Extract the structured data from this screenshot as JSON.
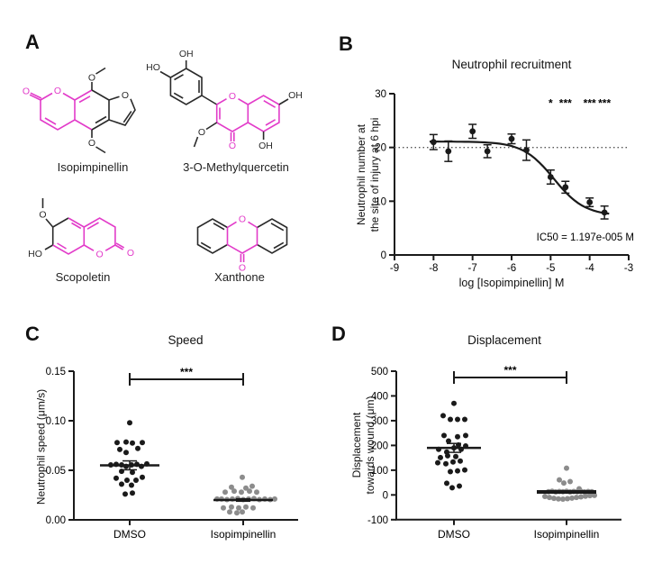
{
  "panel_labels": {
    "a": "A",
    "b": "B",
    "c": "C",
    "d": "D"
  },
  "colors": {
    "magenta": "#E23BC9",
    "ink": "#1A1A1A",
    "gray": "#8C8C8C"
  },
  "molecules": [
    {
      "name": "Isopimpinellin",
      "atoms": [
        "O",
        "O",
        "O",
        "O",
        "O"
      ]
    },
    {
      "name": "3-O-Methylquercetin",
      "atoms": [
        "OH",
        "HO",
        "O",
        "OH",
        "O",
        "O",
        "OH"
      ]
    },
    {
      "name": "Scopoletin",
      "atoms": [
        "O",
        "HO",
        "O",
        "O"
      ]
    },
    {
      "name": "Xanthone",
      "atoms": [
        "O",
        "O"
      ]
    }
  ],
  "chart_data": [
    {
      "id": "B",
      "type": "scatter",
      "title": "Neutrophil recruitment",
      "xlabel": "log [Isopimpinellin] M",
      "ylabel_lines": [
        "Neutrophil number at",
        "the site of injury at 6 hpi"
      ],
      "xlim": [
        -9,
        -3
      ],
      "ylim": [
        0,
        30
      ],
      "xticks": [
        -9,
        -8,
        -7,
        -6,
        -5,
        -4,
        -3
      ],
      "yticks": [
        0,
        10,
        20,
        30
      ],
      "reference_line_y": 20,
      "points": [
        {
          "x": -8.0,
          "y": 21.0,
          "err": 1.4
        },
        {
          "x": -7.62,
          "y": 19.3,
          "err": 1.9
        },
        {
          "x": -7.0,
          "y": 23.0,
          "err": 1.3
        },
        {
          "x": -6.62,
          "y": 19.3,
          "err": 1.2
        },
        {
          "x": -6.0,
          "y": 21.6,
          "err": 0.9
        },
        {
          "x": -5.62,
          "y": 19.5,
          "err": 1.9
        },
        {
          "x": -5.0,
          "y": 14.5,
          "err": 1.3
        },
        {
          "x": -4.62,
          "y": 12.6,
          "err": 1.1
        },
        {
          "x": -4.0,
          "y": 9.8,
          "err": 0.8
        },
        {
          "x": -3.62,
          "y": 7.9,
          "err": 1.2
        }
      ],
      "curve": {
        "top": 21.1,
        "bottom": 7.3,
        "logIC50": -4.92,
        "hill": 1.1
      },
      "significance": [
        {
          "x": -5.0,
          "t": "*"
        },
        {
          "x": -4.62,
          "t": "***"
        },
        {
          "x": -4.0,
          "t": "***"
        },
        {
          "x": -3.62,
          "t": "***"
        }
      ],
      "sig_y": 27.6,
      "annotation": "IC50 = 1.197e-005 M"
    },
    {
      "id": "C",
      "type": "column-scatter",
      "title": "Speed",
      "ylabel": "Neutrophil speed (μm/s)",
      "ylim": [
        0,
        0.15
      ],
      "yticks": [
        0,
        0.05,
        0.1,
        0.15
      ],
      "ytick_labels": [
        "0.00",
        "0.05",
        "0.10",
        "0.15"
      ],
      "significance": "***",
      "groups": [
        {
          "label": "DMSO",
          "color": "ink",
          "mean": 0.055,
          "sem": 0.0045,
          "points": [
            [
              0,
              0.098
            ],
            [
              -14,
              0.078
            ],
            [
              -4,
              0.0785
            ],
            [
              3,
              0.0775
            ],
            [
              14,
              0.078
            ],
            [
              -11,
              0.071
            ],
            [
              9,
              0.072
            ],
            [
              -4,
              0.068
            ],
            [
              -21,
              0.0555
            ],
            [
              -15,
              0.056
            ],
            [
              -9,
              0.0555
            ],
            [
              -4,
              0.054
            ],
            [
              2,
              0.0555
            ],
            [
              8,
              0.056
            ],
            [
              13,
              0.054
            ],
            [
              19,
              0.0565
            ],
            [
              -9,
              0.049
            ],
            [
              3,
              0.048
            ],
            [
              -15,
              0.042
            ],
            [
              -3,
              0.04
            ],
            [
              7,
              0.04
            ],
            [
              14,
              0.043
            ],
            [
              -9,
              0.036
            ],
            [
              2,
              0.035
            ],
            [
              -5,
              0.026
            ],
            [
              3,
              0.027
            ]
          ]
        },
        {
          "label": "Isopimpinellin",
          "color": "gray",
          "mean": 0.02,
          "sem": 0.0012,
          "points": [
            [
              -1,
              0.043
            ],
            [
              -13,
              0.033
            ],
            [
              3,
              0.032
            ],
            [
              10,
              0.034
            ],
            [
              -20,
              0.028
            ],
            [
              -10,
              0.029
            ],
            [
              -2,
              0.028
            ],
            [
              7,
              0.029
            ],
            [
              15,
              0.028
            ],
            [
              -29,
              0.021
            ],
            [
              -24,
              0.021
            ],
            [
              -18,
              0.0205
            ],
            [
              -12,
              0.021
            ],
            [
              -6,
              0.0215
            ],
            [
              0,
              0.0205
            ],
            [
              6,
              0.021
            ],
            [
              12,
              0.0215
            ],
            [
              18,
              0.0205
            ],
            [
              24,
              0.021
            ],
            [
              30,
              0.0205
            ],
            [
              35,
              0.021
            ],
            [
              -22,
              0.012
            ],
            [
              -13,
              0.013
            ],
            [
              -5,
              0.012
            ],
            [
              3,
              0.013
            ],
            [
              11,
              0.012
            ],
            [
              -15,
              0.008
            ],
            [
              -7,
              0.007
            ],
            [
              -1,
              0.008
            ]
          ]
        }
      ]
    },
    {
      "id": "D",
      "type": "column-scatter",
      "title": "Displacement",
      "ylabel_lines": [
        "Displacement",
        "towards wound (μm)"
      ],
      "ylabel": "Displacement towards wound (μm)",
      "ylim": [
        -100,
        500
      ],
      "yticks": [
        -100,
        0,
        100,
        200,
        300,
        400,
        500
      ],
      "ytick_labels": [
        "-100",
        "0",
        "100",
        "200",
        "300",
        "400",
        "500"
      ],
      "significance": "***",
      "groups": [
        {
          "label": "DMSO",
          "color": "ink",
          "mean": 190,
          "sem": 18,
          "points": [
            [
              0,
              370
            ],
            [
              -12,
              320
            ],
            [
              -4,
              305
            ],
            [
              4,
              305
            ],
            [
              12,
              305
            ],
            [
              -11,
              240
            ],
            [
              13,
              240
            ],
            [
              4,
              235
            ],
            [
              -6,
              218
            ],
            [
              -17,
              184
            ],
            [
              -8,
              173
            ],
            [
              0,
              190
            ],
            [
              8,
              184
            ],
            [
              13,
              198
            ],
            [
              5,
              202
            ],
            [
              -15,
              151
            ],
            [
              -7,
              158
            ],
            [
              2,
              155
            ],
            [
              -18,
              130
            ],
            [
              -9,
              126
            ],
            [
              -1,
              133
            ],
            [
              7,
              137
            ],
            [
              -4,
              94
            ],
            [
              4,
              97
            ],
            [
              12,
              101
            ],
            [
              -8,
              47
            ],
            [
              -2,
              29
            ],
            [
              6,
              36
            ]
          ]
        },
        {
          "label": "Isopimpinellin",
          "color": "gray",
          "mean": 12,
          "sem": 4,
          "points": [
            [
              0,
              108
            ],
            [
              -8,
              61
            ],
            [
              4,
              54
            ],
            [
              -3,
              48
            ],
            [
              14,
              25
            ],
            [
              -20,
              13
            ],
            [
              -16,
              15
            ],
            [
              -12,
              12
            ],
            [
              -8,
              14
            ],
            [
              -4,
              13
            ],
            [
              0,
              15
            ],
            [
              4,
              12
            ],
            [
              8,
              14
            ],
            [
              12,
              13
            ],
            [
              16,
              15
            ],
            [
              20,
              12
            ],
            [
              24,
              14
            ],
            [
              28,
              13
            ],
            [
              -24,
              -6
            ],
            [
              -19,
              -10
            ],
            [
              -14,
              -14
            ],
            [
              -9,
              -16
            ],
            [
              -4,
              -17
            ],
            [
              1,
              -15
            ],
            [
              6,
              -13
            ],
            [
              11,
              -10
            ],
            [
              16,
              -8
            ],
            [
              21,
              -5
            ],
            [
              26,
              -3
            ],
            [
              31,
              -2
            ]
          ]
        }
      ]
    }
  ]
}
